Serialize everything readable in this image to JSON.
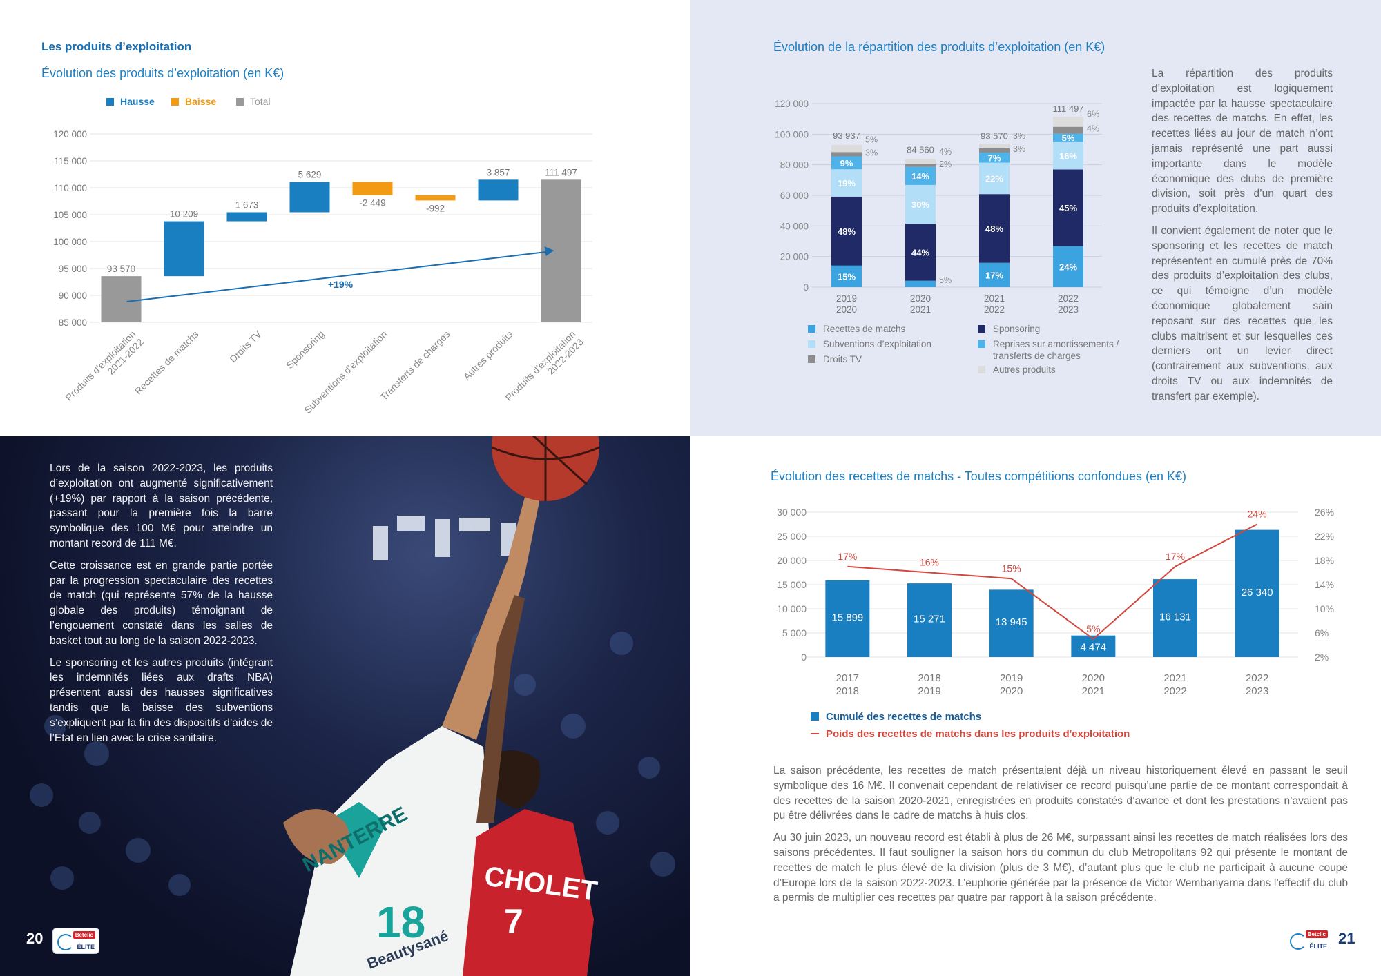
{
  "page_left_number": "20",
  "page_right_number": "21",
  "logo": {
    "brand": "Betclic",
    "sub": "ÉLITE"
  },
  "top_left": {
    "section_title": "Les produits d’exploitation",
    "chart_title": "Évolution des produits d’exploitation  (en K€)"
  },
  "top_right": {
    "chart_title": "Évolution de la répartition des produits d’exploitation  (en K€)",
    "paragraphs": [
      "La répartition des produits d’exploitation est logiquement impactée par la hausse spectaculaire des recettes de matchs. En effet, les recettes liées au jour de match n’ont jamais représenté une part aussi importante dans le modèle économique des clubs de première division, soit près d’un quart des produits d’exploitation.",
      "Il convient également de noter que le sponsoring et les recettes de match représentent en cumulé près de 70% des produits d’exploitation des clubs, ce qui témoigne d’un modèle économique globalement sain reposant sur des recettes que les clubs maitrisent et sur lesquelles ces derniers ont un levier direct (contrairement aux subventions, aux droits TV ou aux indemnités de transfert par exemple)."
    ]
  },
  "bottom_left": {
    "paragraphs": [
      "Lors de la saison 2022-2023, les produits d’exploitation ont augmenté significativement (+19%) par rapport à la saison précédente, passant pour la première fois la barre symbolique des 100 M€ pour atteindre un montant record de 111 M€.",
      "Cette croissance est en grande partie portée par la progression spectaculaire des recettes de match (qui représente 57% de la hausse globale des produits) témoignant de l’engouement constaté dans les salles de basket tout au long de la saison 2022-2023.",
      "Le sponsoring et les autres produits (intégrant les indemnités liées aux drafts NBA) présentent aussi des hausses significatives tandis que la baisse des subventions s’expliquent par la fin des dispositifs d’aides de l’Etat en lien avec la crise sanitaire."
    ]
  },
  "bottom_right": {
    "chart_title": "Évolution des recettes de matchs - Toutes compétitions confondues  (en K€)",
    "paragraphs": [
      "La saison précédente, les recettes de match présentaient déjà un niveau historiquement élevé en passant le seuil symbolique des 16 M€. Il convenait cependant de relativiser ce record puisqu’une partie de ce montant correspondait à des recettes de la saison 2020-2021, enregistrées en produits constatés d’avance et dont les prestations n’avaient pas pu être délivrées dans le cadre de matchs à huis clos.",
      "Au 30 juin 2023, un nouveau record est établi à plus de 26 M€, surpassant ainsi les recettes de match réalisées lors des saisons précédentes. Il faut souligner la saison hors du commun du club Metropolitans 92 qui présente le montant de recettes de match le plus élevé de la division (plus de 3 M€), d’autant plus que le club ne participait à aucune coupe d’Europe lors de la saison 2022-2023. L’euphorie générée par la présence de Victor Wembanyama dans l’effectif du club a permis de multiplier ces recettes par quatre par rapport à la saison précédente."
    ]
  },
  "photo": {
    "jersey_left_number": "18",
    "jersey_left_text": "NANTERRE",
    "jersey_left_sponsor": "Beautysané",
    "jersey_right_text": "CHOLET",
    "jersey_right_number": "7"
  },
  "chart_data": [
    {
      "id": "waterfall",
      "type": "bar",
      "subtype": "waterfall",
      "title": "Évolution des produits d’exploitation  (en K€)",
      "legend": [
        "Hausse",
        "Baisse",
        "Total"
      ],
      "colors": {
        "Hausse": "#1a7fc0",
        "Baisse": "#f29a14",
        "Total": "#999999",
        "arrow": "#1a6eb0"
      },
      "categories": [
        "Produits d’exploitation 2021-2022",
        "Recettes de matchs",
        "Droits TV",
        "Sponsoring",
        "Subventions d’exploitation",
        "Transferts de charges",
        "Autres produits",
        "Produits d’exploitation 2022-2023"
      ],
      "values": [
        93570,
        10209,
        1673,
        5629,
        -2449,
        -992,
        3857,
        111497
      ],
      "value_labels": [
        "93 570",
        "10 209",
        "1 673",
        "5 629",
        "-2 449",
        "-992",
        "3 857",
        "111 497"
      ],
      "kinds": [
        "Total",
        "Hausse",
        "Hausse",
        "Hausse",
        "Baisse",
        "Baisse",
        "Hausse",
        "Total"
      ],
      "y_ticks": [
        "120 000",
        "115 000",
        "110 000",
        "105 000",
        "100 000",
        "95 000",
        "90 000",
        "85 000"
      ],
      "ylim": [
        85000,
        120000
      ],
      "annotation": "+19%",
      "grid": true,
      "legend_position": "top-left"
    },
    {
      "id": "stacked",
      "type": "bar",
      "subtype": "stacked",
      "title": "Évolution de la répartition des produits d’exploitation  (en K€)",
      "categories": [
        "2019 2020",
        "2020 2021",
        "2021 2022",
        "2022 2023"
      ],
      "category_lines": [
        [
          "2019",
          "2020"
        ],
        [
          "2020",
          "2021"
        ],
        [
          "2021",
          "2022"
        ],
        [
          "2022",
          "2023"
        ]
      ],
      "totals": [
        93937,
        84560,
        93570,
        111497
      ],
      "total_labels": [
        "93 937",
        "84 560",
        "93 570",
        "111 497"
      ],
      "y_ticks": [
        "120 000",
        "100 000",
        "80 000",
        "60 000",
        "40 000",
        "20 000",
        "0"
      ],
      "ylim": [
        0,
        120000
      ],
      "series": [
        {
          "name": "Recettes de matchs",
          "color": "#3aa3e0",
          "label_color": "#ffffff",
          "percents": [
            15,
            5,
            17,
            24
          ],
          "labels_inside": [
            true,
            false,
            true,
            true
          ]
        },
        {
          "name": "Sponsoring",
          "color": "#1f2a66",
          "label_color": "#ffffff",
          "percents": [
            48,
            44,
            48,
            45
          ],
          "labels_inside": [
            true,
            true,
            true,
            true
          ]
        },
        {
          "name": "Subventions d’exploitation",
          "color": "#b2dff7",
          "label_color": "#ffffff",
          "percents": [
            19,
            30,
            22,
            16
          ],
          "labels_inside": [
            true,
            true,
            true,
            true
          ]
        },
        {
          "name": "Reprises sur amortissements / transferts de charges",
          "color": "#4fb3ea",
          "label_color": "#ffffff",
          "percents": [
            9,
            14,
            7,
            5
          ],
          "labels_inside": [
            true,
            true,
            true,
            true
          ]
        },
        {
          "name": "Droits TV",
          "color": "#8c8c8c",
          "label_color": "#888888",
          "percents": [
            3,
            2,
            3,
            4
          ],
          "labels_inside": [
            false,
            false,
            false,
            false
          ]
        },
        {
          "name": "Autres produits",
          "color": "#dcdcdc",
          "label_color": "#888888",
          "percents": [
            5,
            4,
            3,
            6
          ],
          "labels_inside": [
            false,
            false,
            false,
            false
          ]
        }
      ],
      "legend_order": [
        "Recettes de matchs",
        "Sponsoring",
        "Subventions d’exploitation",
        "Reprises sur amortissements / transferts de charges",
        "Droits TV",
        "Autres produits"
      ],
      "grid": true,
      "legend_position": "bottom"
    },
    {
      "id": "combo",
      "type": "bar",
      "subtype": "bar-line",
      "title": "Évolution des recettes de matchs - Toutes compétitions confondues  (en K€)",
      "categories": [
        "2017 2018",
        "2018 2019",
        "2019 2020",
        "2020 2021",
        "2021 2022",
        "2022 2023"
      ],
      "category_lines": [
        [
          "2017",
          "2018"
        ],
        [
          "2018",
          "2019"
        ],
        [
          "2019",
          "2020"
        ],
        [
          "2020",
          "2021"
        ],
        [
          "2021",
          "2022"
        ],
        [
          "2022",
          "2023"
        ]
      ],
      "series": [
        {
          "name": "Cumulé des recettes de matchs",
          "type": "bar",
          "color": "#1a7fc0",
          "values": [
            15899,
            15271,
            13945,
            4474,
            16131,
            26340
          ],
          "labels": [
            "15 899",
            "15 271",
            "13 945",
            "4 474",
            "16 131",
            "26 340"
          ]
        },
        {
          "name": "Poids des recettes de matchs dans les produits d'exploitation",
          "type": "line",
          "color": "#d0483e",
          "values": [
            17,
            16,
            15,
            5,
            17,
            24
          ],
          "labels": [
            "17%",
            "16%",
            "15%",
            "5%",
            "17%",
            "24%"
          ]
        }
      ],
      "y_ticks": [
        "30 000",
        "25 000",
        "20 000",
        "15 000",
        "10 000",
        "5 000",
        "0"
      ],
      "ylim": [
        0,
        30000
      ],
      "y2_ticks": [
        "26%",
        "22%",
        "18%",
        "14%",
        "10%",
        "6%",
        "2%"
      ],
      "y2lim": [
        2,
        26
      ],
      "grid": true,
      "legend_position": "bottom"
    }
  ]
}
